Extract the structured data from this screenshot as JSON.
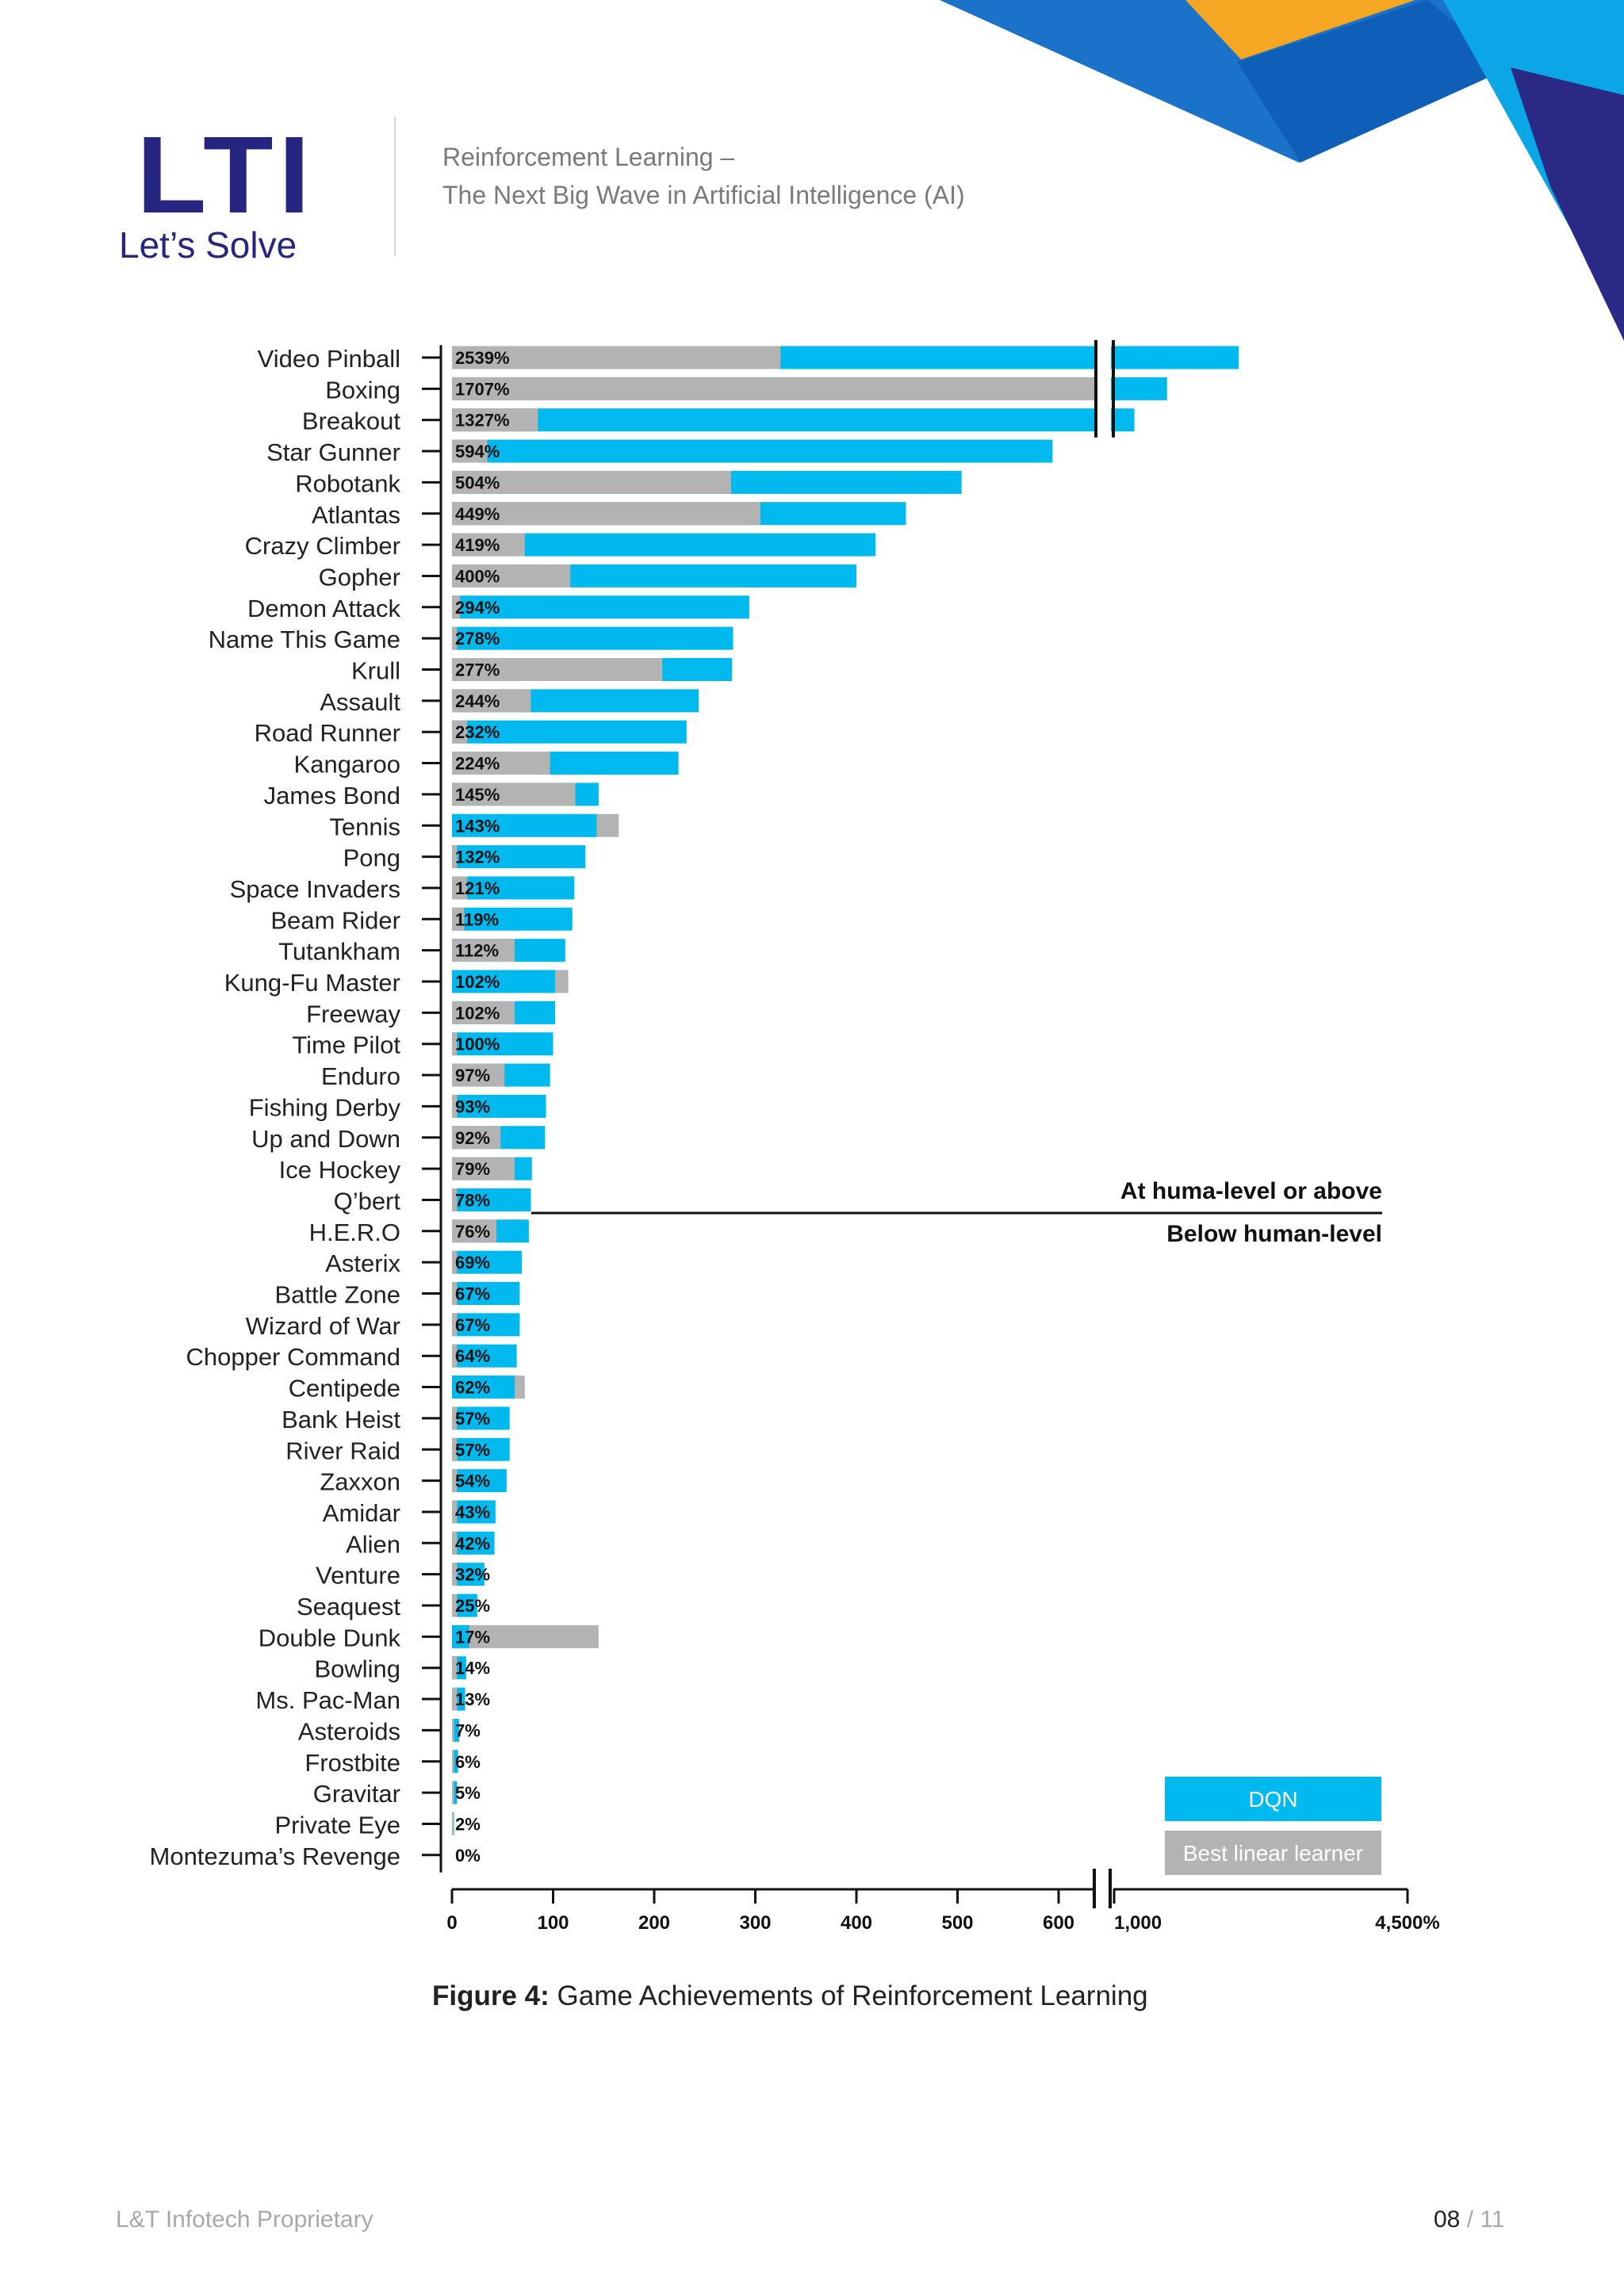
{
  "header": {
    "logo_text": "LTI",
    "tagline": "Let’s Solve",
    "title_line1": "Reinforcement Learning –",
    "title_line2": "The Next Big Wave in Artificial Intelligence (AI)"
  },
  "colors": {
    "dqn": "#00b9ee",
    "linear": "#b3b3b3",
    "brand_navy": "#262680",
    "deco_blue": "#1a73c9",
    "deco_orange": "#f5a623",
    "deco_cyan": "#0aa6e6"
  },
  "chart_data": {
    "type": "bar",
    "orientation": "horizontal",
    "categories": [
      "Video Pinball",
      "Boxing",
      "Breakout",
      "Star Gunner",
      "Robotank",
      "Atlantas",
      "Crazy Climber",
      "Gopher",
      "Demon Attack",
      "Name This Game",
      "Krull",
      "Assault",
      "Road Runner",
      "Kangaroo",
      "James Bond",
      "Tennis",
      "Pong",
      "Space Invaders",
      "Beam Rider",
      "Tutankham",
      "Kung-Fu Master",
      "Freeway",
      "Time Pilot",
      "Enduro",
      "Fishing Derby",
      "Up and Down",
      "Ice Hockey",
      "Q’bert",
      "H.E.R.O",
      "Asterix",
      "Battle Zone",
      "Wizard of War",
      "Chopper Command",
      "Centipede",
      "Bank Heist",
      "River Raid",
      "Zaxxon",
      "Amidar",
      "Alien",
      "Venture",
      "Seaquest",
      "Double Dunk",
      "Bowling",
      "Ms. Pac-Man",
      "Asteroids",
      "Frostbite",
      "Gravitar",
      "Private Eye",
      "Montezuma’s Revenge"
    ],
    "value_labels": [
      "2539%",
      "1707%",
      "1327%",
      "594%",
      "504%",
      "449%",
      "419%",
      "400%",
      "294%",
      "278%",
      "277%",
      "244%",
      "232%",
      "224%",
      "145%",
      "143%",
      "132%",
      "121%",
      "119%",
      "112%",
      "102%",
      "102%",
      "100%",
      "97%",
      "93%",
      "92%",
      "79%",
      "78%",
      "76%",
      "69%",
      "67%",
      "67%",
      "64%",
      "62%",
      "57%",
      "57%",
      "54%",
      "43%",
      "42%",
      "32%",
      "25%",
      "17%",
      "14%",
      "13%",
      "7%",
      "6%",
      "5%",
      "2%",
      "0%"
    ],
    "series": [
      {
        "name": "DQN",
        "values": [
          2539,
          1707,
          1327,
          594,
          504,
          449,
          419,
          400,
          294,
          278,
          277,
          244,
          232,
          224,
          145,
          143,
          132,
          121,
          119,
          112,
          102,
          102,
          100,
          97,
          93,
          92,
          79,
          78,
          76,
          69,
          67,
          67,
          64,
          62,
          57,
          57,
          54,
          43,
          42,
          32,
          25,
          17,
          14,
          13,
          7,
          6,
          5,
          2,
          0
        ]
      },
      {
        "name": "Best linear learner",
        "values": [
          325,
          1000,
          85,
          35,
          276,
          305,
          72,
          117,
          8,
          5,
          208,
          78,
          15,
          97,
          122,
          165,
          5,
          15,
          12,
          62,
          115,
          62,
          5,
          52,
          5,
          48,
          62,
          5,
          44,
          5,
          5,
          5,
          5,
          72,
          5,
          5,
          5,
          5,
          5,
          5,
          5,
          145,
          5,
          5,
          2,
          2,
          2,
          1,
          0
        ]
      }
    ],
    "x_ticks": [
      "0",
      "100",
      "200",
      "300",
      "400",
      "500",
      "600",
      "1,000",
      "4,500%"
    ],
    "x_scale": "piecewise linear 0–600, axis break, then 1,000–4,500",
    "annotation_above": "At huma-level or above",
    "annotation_below": "Below human-level",
    "legend": [
      {
        "label": "DQN",
        "color": "#00b9ee"
      },
      {
        "label": "Best linear learner",
        "color": "#b3b3b3"
      }
    ],
    "legend_position": "bottom-right",
    "caption_bold": "Figure 4:",
    "caption_text": " Game Achievements of Reinforcement Learning"
  },
  "footer": {
    "left": "L&T Infotech Proprietary",
    "page": "08",
    "sep": " / ",
    "total": "11"
  }
}
